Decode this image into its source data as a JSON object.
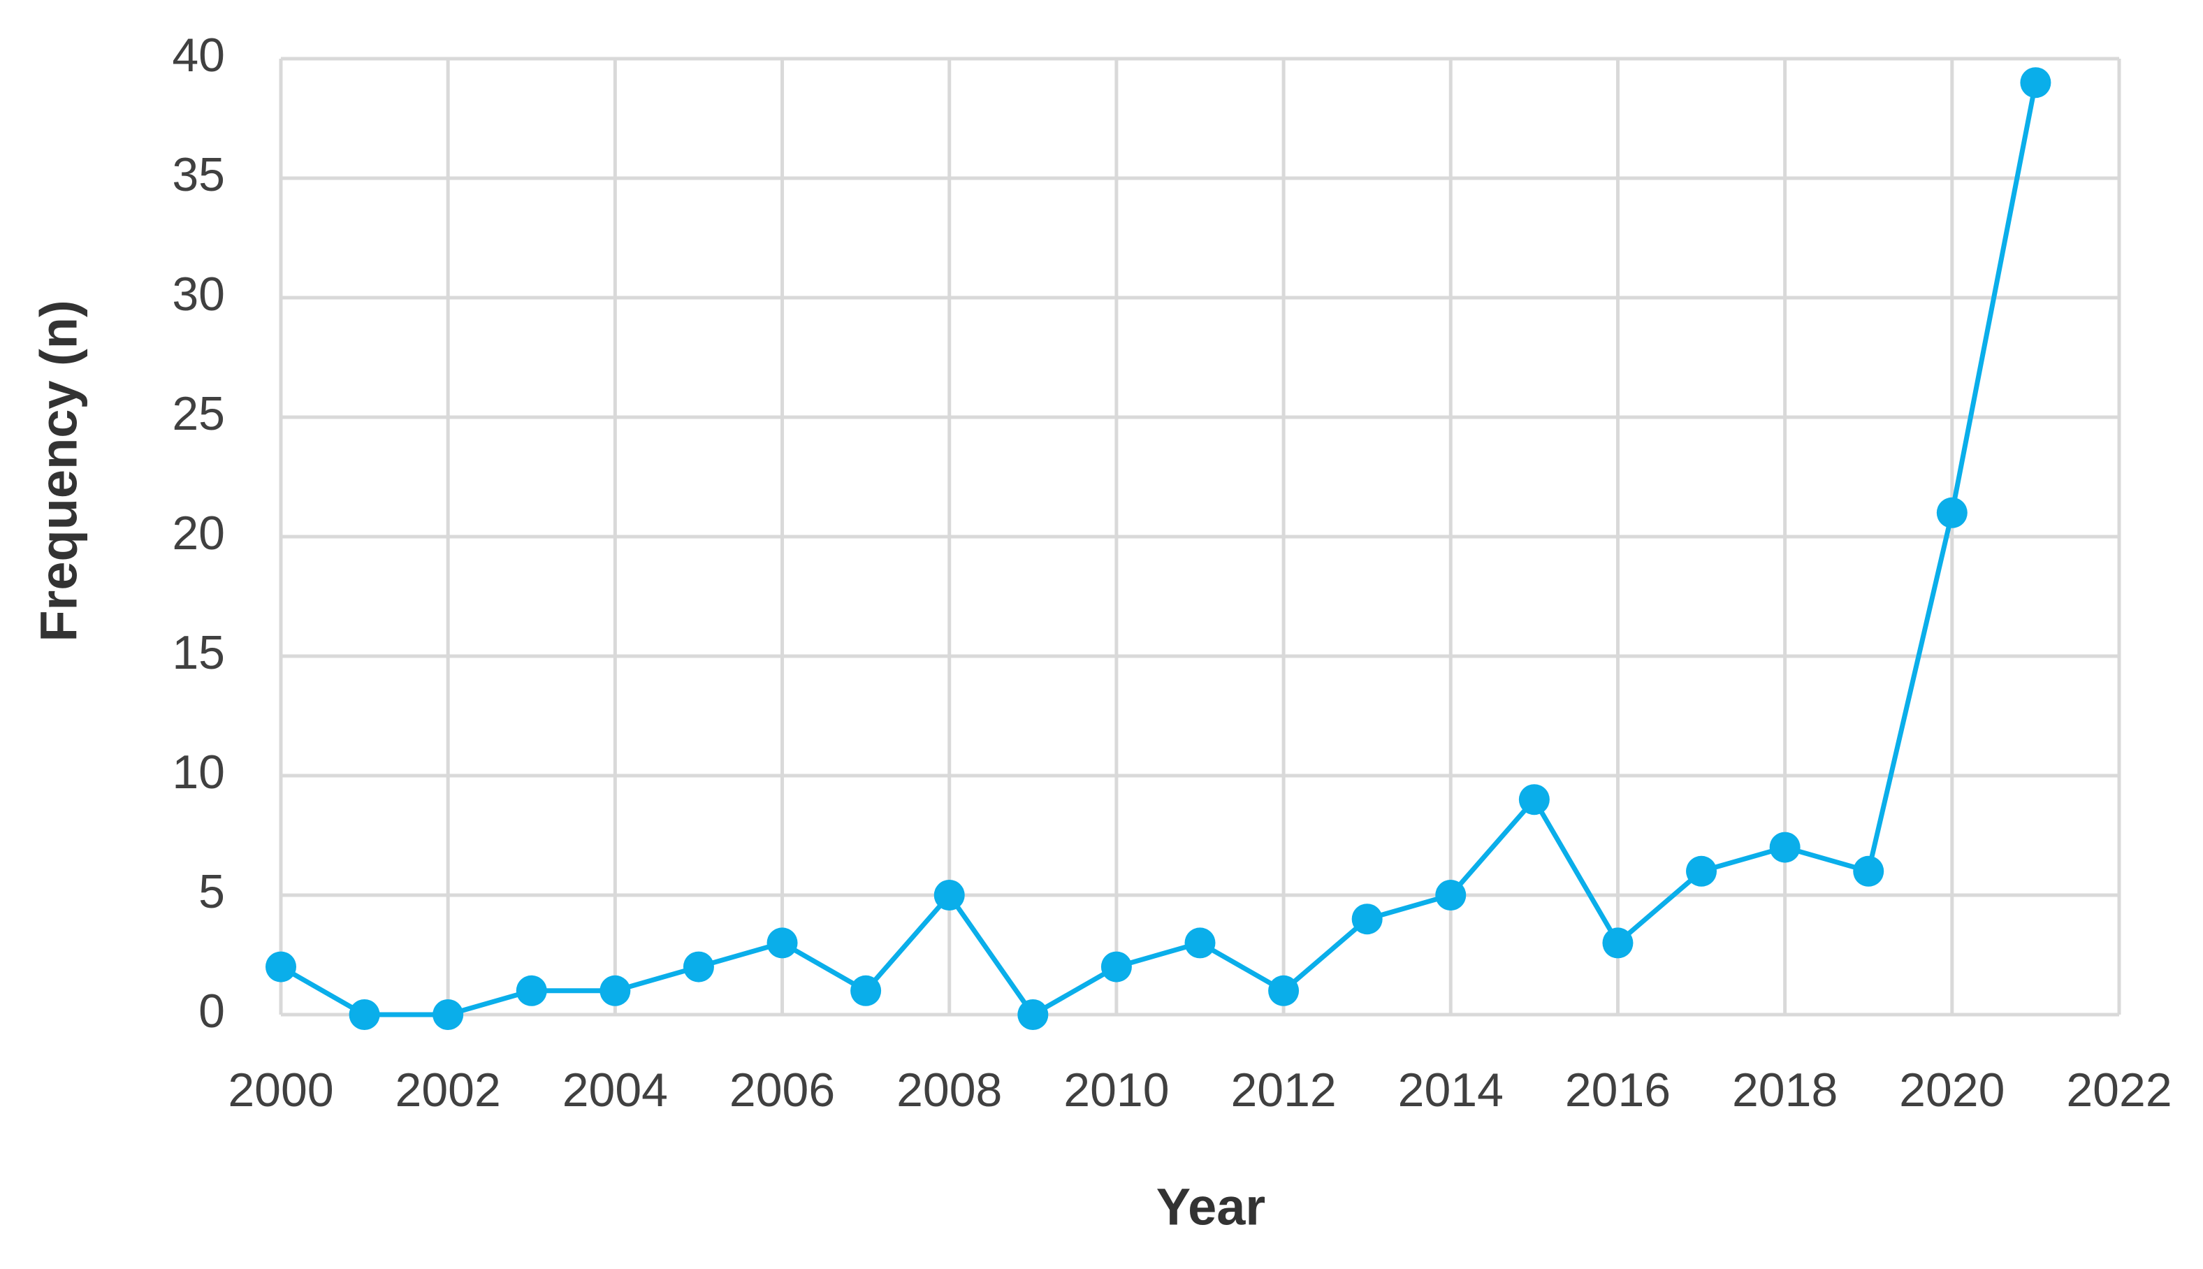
{
  "chart_data": {
    "type": "line",
    "x_label": "Year",
    "y_label": "Frequency (n)",
    "x": [
      2000,
      2001,
      2002,
      2003,
      2004,
      2005,
      2006,
      2007,
      2008,
      2009,
      2010,
      2011,
      2012,
      2013,
      2014,
      2015,
      2016,
      2017,
      2018,
      2019,
      2020,
      2021
    ],
    "series": [
      {
        "name": "Frequency",
        "color": "#0aaeea",
        "values": [
          2,
          0,
          0,
          1,
          1,
          2,
          3,
          1,
          5,
          0,
          2,
          3,
          1,
          4,
          5,
          9,
          3,
          6,
          7,
          6,
          21,
          39
        ]
      }
    ],
    "xlim": [
      2000,
      2022
    ],
    "xticks": [
      2000,
      2002,
      2004,
      2006,
      2008,
      2010,
      2012,
      2014,
      2016,
      2018,
      2020,
      2022
    ],
    "ylim": [
      0,
      40
    ],
    "yticks": [
      0,
      5,
      10,
      15,
      20,
      25,
      30,
      35,
      40
    ],
    "grid": true
  }
}
